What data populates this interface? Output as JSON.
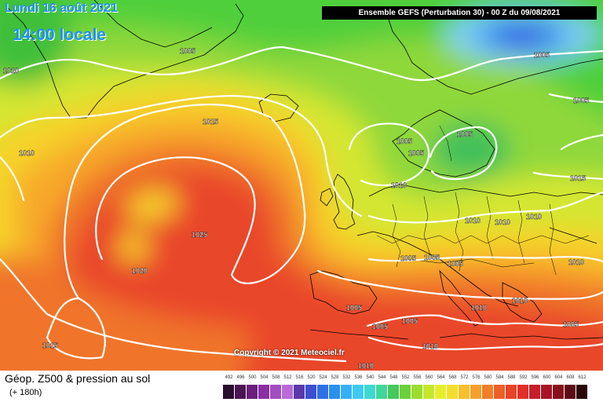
{
  "header": {
    "date": "Lundi 16 août 2021",
    "local_time": "14:00 locale",
    "model_info": "Ensemble GEFS  (Perturbation 30)  -  00 Z du 09/08/2021"
  },
  "copyright": "Copyright © 2021 Meteociel.fr",
  "parameter": {
    "title": "Géop. Z500 & pression au sol",
    "lead_time": "(+ 180h)"
  },
  "legend": {
    "labels": [
      "492",
      "496",
      "500",
      "504",
      "508",
      "512",
      "516",
      "520",
      "524",
      "528",
      "532",
      "536",
      "540",
      "544",
      "548",
      "552",
      "556",
      "560",
      "564",
      "568",
      "572",
      "576",
      "580",
      "584",
      "588",
      "592",
      "596",
      "600",
      "604",
      "608",
      "612"
    ],
    "colors": [
      "#2b0f2e",
      "#4a1552",
      "#6b1f7a",
      "#8c2fa3",
      "#a24dbf",
      "#b96ad6",
      "#5a3aa8",
      "#3b4fcf",
      "#2f6fe6",
      "#2b8ff0",
      "#35b0f5",
      "#40c9f2",
      "#3fd8d0",
      "#3fd69a",
      "#45c95a",
      "#6bd03a",
      "#9bdc2f",
      "#c6e62c",
      "#e6ee2c",
      "#f4de2c",
      "#f7c02c",
      "#f6a02a",
      "#f27e28",
      "#ee5f26",
      "#e84426",
      "#e0302a",
      "#c81e2a",
      "#a81424",
      "#86101e",
      "#5c0c16",
      "#2a060a"
    ]
  },
  "isobar_labels": [
    {
      "text": "1005"
    },
    {
      "text": "1010"
    },
    {
      "text": "1010"
    },
    {
      "text": "1015"
    },
    {
      "text": "1025"
    },
    {
      "text": "1020"
    },
    {
      "text": "1015"
    },
    {
      "text": "1005"
    },
    {
      "text": "1005"
    },
    {
      "text": "1005"
    },
    {
      "text": "1005"
    },
    {
      "text": "1005"
    },
    {
      "text": "1010"
    },
    {
      "text": "1015"
    },
    {
      "text": "1010"
    },
    {
      "text": "1010"
    },
    {
      "text": "1010"
    },
    {
      "text": "1005"
    },
    {
      "text": "1005"
    },
    {
      "text": "1010"
    },
    {
      "text": "1005"
    },
    {
      "text": "1010"
    },
    {
      "text": "1010"
    },
    {
      "text": "1005"
    },
    {
      "text": "1005"
    },
    {
      "text": "1005"
    },
    {
      "text": "1010"
    },
    {
      "text": "1010"
    },
    {
      "text": "1005"
    }
  ],
  "colors": {
    "title_blue": "#1e90ff",
    "isobar": "#ffffff",
    "coastline": "#000000"
  }
}
